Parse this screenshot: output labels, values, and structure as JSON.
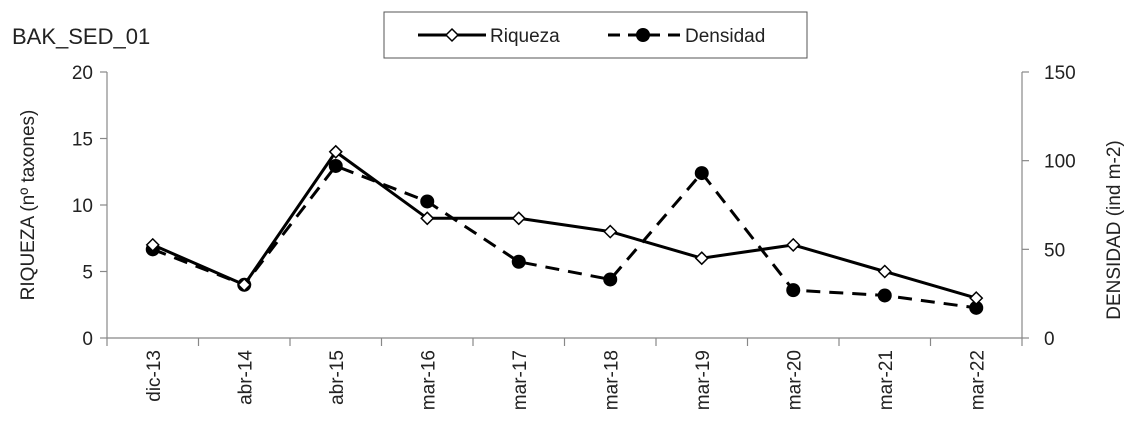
{
  "chart_data": {
    "type": "line",
    "title": "BAK_SED_01",
    "categories": [
      "dic-13",
      "abr-14",
      "abr-15",
      "mar-16",
      "mar-17",
      "mar-18",
      "mar-19",
      "mar-20",
      "mar-21",
      "mar-22"
    ],
    "ylabel": "RIQUEZA (nº taxones)",
    "y2label": "DENSIDAD (ind m-2)",
    "ylim": [
      0,
      20
    ],
    "y2lim": [
      0,
      150
    ],
    "yticks": [
      "0",
      "5",
      "10",
      "15",
      "20"
    ],
    "y2ticks": [
      "0",
      "50",
      "100",
      "150"
    ],
    "legend_position": "top-center",
    "grid": false,
    "series": [
      {
        "name": "Riqueza",
        "axis": "left",
        "style": "solid",
        "marker": "open-diamond",
        "values": [
          7,
          4,
          14,
          9,
          9,
          8,
          6,
          7,
          5,
          3
        ]
      },
      {
        "name": "Densidad",
        "axis": "right",
        "style": "dashed",
        "marker": "filled-circle",
        "values": [
          50,
          30,
          97,
          77,
          43,
          33,
          93,
          27,
          24,
          17
        ]
      }
    ]
  }
}
